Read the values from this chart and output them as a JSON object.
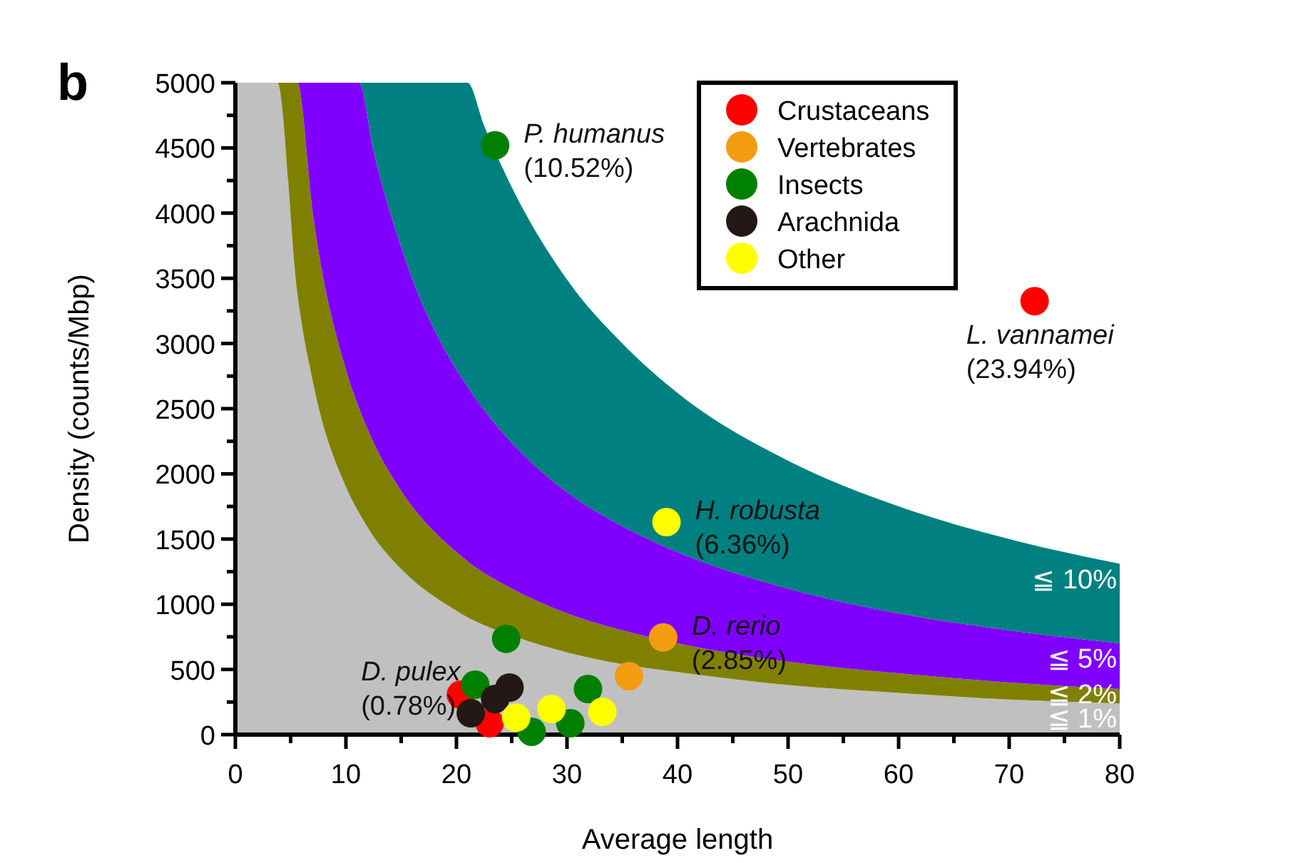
{
  "chart_data": {
    "type": "scatter",
    "xlabel": "Average length",
    "ylabel": "Density (counts/Mbp)",
    "xlim": [
      0,
      80
    ],
    "ylim": [
      0,
      5000
    ],
    "xticks": [
      0,
      {
        "value": 5,
        "label": null
      },
      10,
      {
        "value": 15,
        "label": null
      },
      20,
      {
        "value": 25,
        "label": null
      },
      30,
      {
        "value": 35,
        "label": null
      },
      40,
      {
        "value": 45,
        "label": null
      },
      50,
      {
        "value": 55,
        "label": null
      },
      60,
      {
        "value": 65,
        "label": null
      },
      70,
      {
        "value": 75,
        "label": null
      },
      80
    ],
    "yticks": [
      0,
      {
        "value": 250,
        "label": null
      },
      500,
      {
        "value": 750,
        "label": null
      },
      1000,
      {
        "value": 1250,
        "label": null
      },
      1500,
      {
        "value": 1750,
        "label": null
      },
      2000,
      {
        "value": 2250,
        "label": null
      },
      2500,
      {
        "value": 2750,
        "label": null
      },
      3000,
      {
        "value": 3250,
        "label": null
      },
      3500,
      {
        "value": 3750,
        "label": null
      },
      4000,
      {
        "value": 4250,
        "label": null
      },
      4500,
      {
        "value": 4750,
        "label": null
      },
      5000
    ],
    "grid": false,
    "legend": "top right",
    "marker": "circle",
    "stacked": true,
    "series": [
      {
        "type": "area",
        "marker": "none",
        "name": "≦ 1%",
        "color": "#c0c0c0",
        "x": [
          0,
          3.8,
          5.6,
          7,
          10,
          11.2,
          12.5,
          15,
          20,
          21,
          22.5,
          25,
          30,
          35,
          40,
          50,
          60,
          70,
          80
        ],
        "values": [
          5000,
          5000,
          3390,
          2710,
          1900,
          1700,
          1520,
          1270,
          950,
          900,
          840,
          760,
          630,
          540,
          480,
          380,
          320,
          270,
          240
        ]
      },
      {
        "type": "area",
        "marker": "none",
        "name": "≦ 2%",
        "color": "#808000",
        "x": [
          0,
          3.8,
          5.6,
          7,
          10,
          11.2,
          12.5,
          15,
          20,
          21,
          22.5,
          25,
          30,
          35,
          40,
          50,
          60,
          70,
          80
        ],
        "values": [
          0,
          0,
          1610,
          1290,
          900,
          800,
          720,
          600,
          450,
          430,
          400,
          360,
          300,
          260,
          220,
          180,
          150,
          130,
          110
        ]
      },
      {
        "type": "area",
        "marker": "none",
        "name": "≦ 5%",
        "color": "#8000ff",
        "x": [
          0,
          3.8,
          5.6,
          7,
          10,
          11.2,
          12.5,
          15,
          20,
          21,
          22.5,
          25,
          30,
          35,
          40,
          50,
          60,
          70,
          80
        ],
        "values": [
          0,
          0,
          0,
          1000,
          2200,
          2500,
          2240,
          1870,
          1400,
          1340,
          1250,
          1120,
          930,
          800,
          700,
          560,
          460,
          400,
          350
        ]
      },
      {
        "type": "area",
        "marker": "none",
        "name": "≦ 10%",
        "color": "#008080",
        "x": [
          0,
          3.8,
          5.6,
          7,
          10,
          11.2,
          12.5,
          15,
          20,
          21,
          22.5,
          25,
          30,
          35,
          40,
          50,
          60,
          70,
          80
        ],
        "values": [
          0,
          0,
          0,
          0,
          0,
          0,
          520,
          1270,
          2200,
          2330,
          2180,
          1960,
          1630,
          1400,
          1220,
          980,
          820,
          700,
          610
        ]
      },
      {
        "name": "Crustaceans",
        "color": "#ff0000",
        "x": [
          20.4,
          72.3,
          23
        ],
        "values": [
          306,
          3325,
          88
        ]
      },
      {
        "name": "Vertebrates",
        "color": "#f39c12",
        "x": [
          38.7,
          35.6
        ],
        "values": [
          745,
          449
        ]
      },
      {
        "name": "Insects",
        "color": "#008000",
        "x": [
          23.5,
          24.5,
          31.9,
          30.3,
          26.8,
          21.7
        ],
        "values": [
          4520,
          735,
          350,
          88,
          22,
          383
        ]
      },
      {
        "name": "Arachnida",
        "color": "#231815",
        "x": [
          24.8,
          23.5,
          21.3
        ],
        "values": [
          361,
          274,
          164
        ]
      },
      {
        "name": "Other",
        "color": "#ffff00",
        "x": [
          39,
          25.4,
          28.6,
          33.2
        ],
        "values": [
          1630,
          131,
          197,
          175
        ]
      }
    ],
    "annotations": [
      "b",
      {
        "text": "P. humanus\n(10.52%)",
        "x": 23.5,
        "y": 4520
      },
      {
        "text": "L. vannamei\n(23.94%)",
        "x": 72.3,
        "y": 3325
      },
      {
        "text": "H. robusta\n(6.36%)",
        "x": 39,
        "y": 1630
      },
      {
        "text": "D. rerio\n(2.85%)",
        "x": 38.7,
        "y": 745
      },
      {
        "text": "D. pulex\n(0.78%)",
        "x": 20.4,
        "y": 306
      }
    ]
  }
}
